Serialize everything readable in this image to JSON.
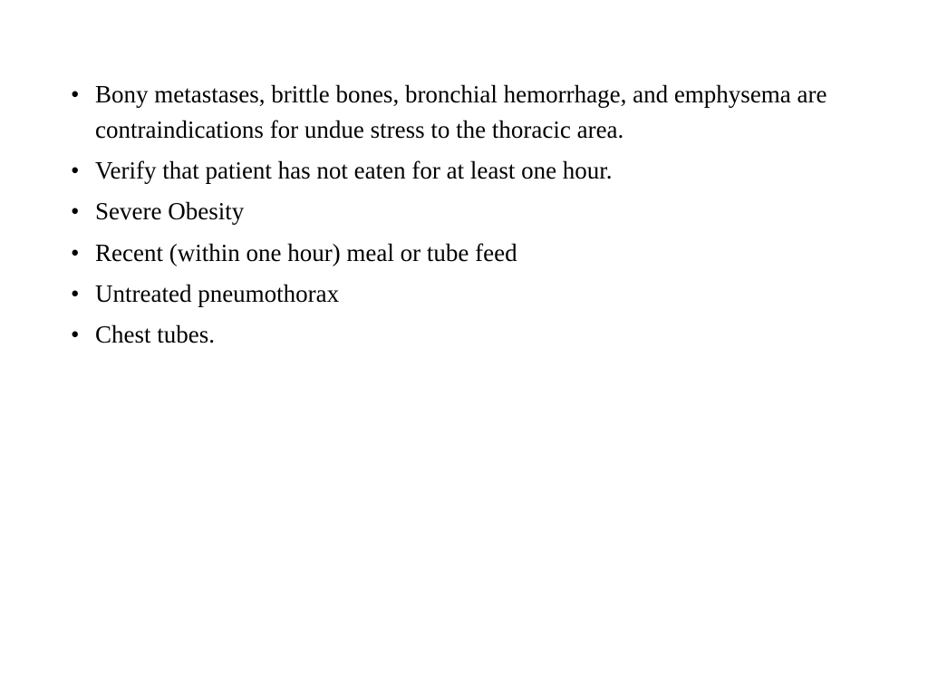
{
  "slide": {
    "bullet_items": [
      "Bony metastases, brittle bones, bronchial hemorrhage, and emphysema are contraindications for undue stress to the thoracic area.",
      "Verify that patient has not eaten for at least one hour.",
      "Severe Obesity",
      "Recent (within one hour) meal or tube feed",
      "Untreated pneumothorax",
      "Chest tubes."
    ],
    "text_color": "#000000",
    "background_color": "#ffffff",
    "font_family": "Georgia, serif",
    "font_size": 27,
    "line_height": 1.45
  }
}
